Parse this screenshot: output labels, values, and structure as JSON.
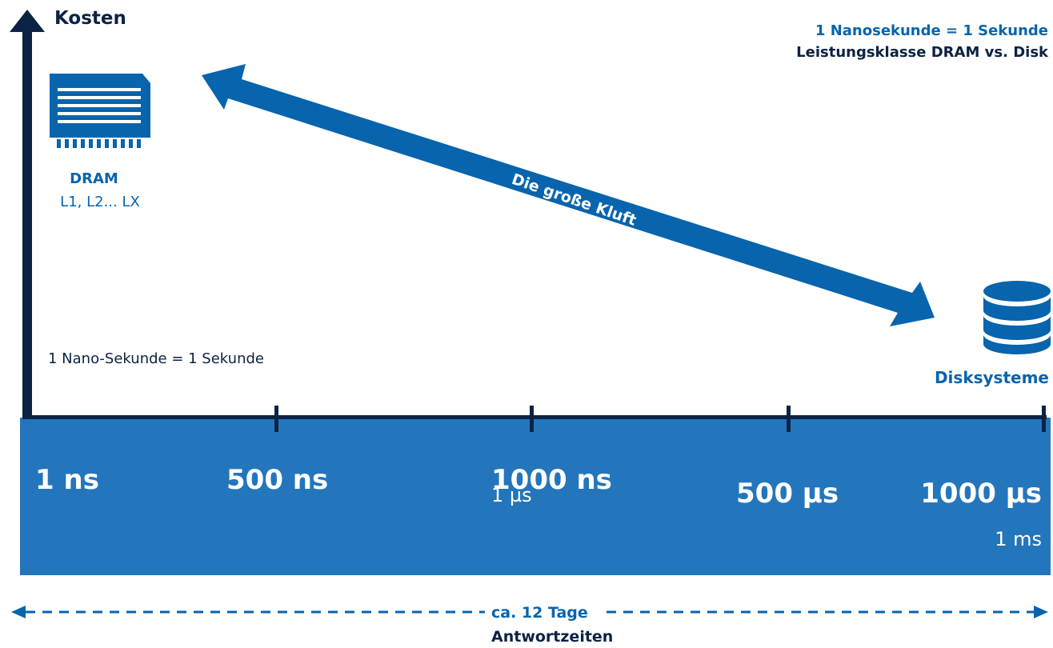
{
  "axis": {
    "y_label": "Kosten"
  },
  "header": {
    "line1": "1 Nanosekunde = 1 Sekunde",
    "line2": "Leistungsklasse DRAM vs. Disk"
  },
  "dram": {
    "title": "DRAM",
    "subtitle": "L1, L2... LX"
  },
  "disk": {
    "title": "Disksysteme"
  },
  "gap_arrow": {
    "label": "Die große Kluft"
  },
  "note": "1 Nano-Sekunde = 1 Sekunde",
  "timeline": {
    "labels": [
      {
        "main": "1 ns",
        "sub": ""
      },
      {
        "main": "500 ns",
        "sub": ""
      },
      {
        "main": "1000 ns",
        "sub": "1 µs"
      },
      {
        "main": "500 µs",
        "sub": ""
      },
      {
        "main": "1000 µs",
        "sub": "1 ms"
      }
    ]
  },
  "span": {
    "label": "ca. 12 Tage",
    "caption": "Antwortzeiten"
  },
  "colors": {
    "navy": "#0b2343",
    "blue": "#0764ad",
    "band": "#2476bc"
  },
  "icons": {
    "dram": "memory-module-icon",
    "disk": "database-icon"
  }
}
